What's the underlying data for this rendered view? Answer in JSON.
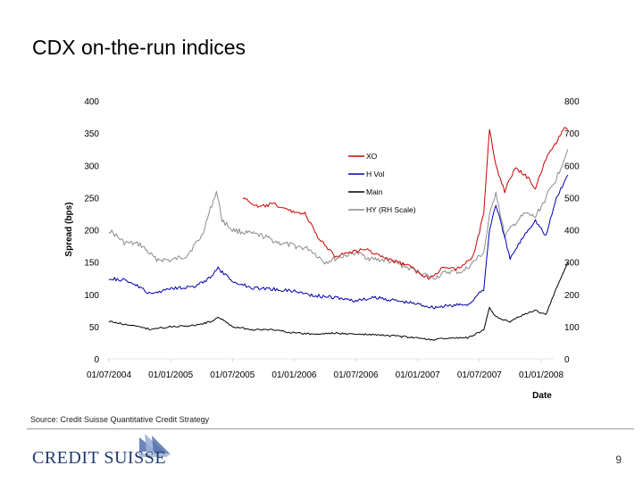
{
  "slide": {
    "title": "CDX on-the-run indices",
    "source": "Source: Credit Suisse Quantitative Credit Strategy",
    "page_number": "9",
    "logo_text": "CREDIT SUISSE"
  },
  "colors": {
    "xo": "#cc0000",
    "hvol": "#0000b0",
    "main": "#000000",
    "hy": "#8c8c8c",
    "logo": "#1f3a6e"
  },
  "chart_data": {
    "type": "line",
    "xlabel": "Date",
    "ylabel": "Spread (bps)",
    "x_ticks": [
      "01/07/2004",
      "01/01/2005",
      "01/07/2005",
      "01/01/2006",
      "01/07/2006",
      "01/01/2007",
      "01/07/2007",
      "01/01/2008"
    ],
    "ylim": [
      0,
      400
    ],
    "y2lim": [
      0,
      800
    ],
    "y_ticks": [
      "0",
      "50",
      "100",
      "150",
      "200",
      "250",
      "300",
      "350",
      "400"
    ],
    "y2_ticks": [
      "0",
      "100",
      "200",
      "300",
      "400",
      "500",
      "600",
      "700",
      "800"
    ],
    "legend_position": "center-right",
    "series": [
      {
        "name": "XO",
        "axis": "left",
        "color": "#cc0000",
        "x": [
          "2005-08-01",
          "2005-09-15",
          "2005-11-01",
          "2005-12-15",
          "2006-02-01",
          "2006-03-15",
          "2006-05-01",
          "2006-06-15",
          "2006-08-01",
          "2006-10-01",
          "2006-12-01",
          "2007-02-01",
          "2007-03-15",
          "2007-05-01",
          "2007-06-15",
          "2007-07-15",
          "2007-08-01",
          "2007-08-20",
          "2007-09-15",
          "2007-10-15",
          "2007-11-15",
          "2007-12-15",
          "2008-01-15",
          "2008-02-15",
          "2008-03-10",
          "2008-03-20"
        ],
        "y": [
          250,
          235,
          240,
          230,
          225,
          185,
          160,
          165,
          170,
          155,
          145,
          125,
          140,
          140,
          160,
          225,
          355,
          300,
          260,
          295,
          285,
          265,
          310,
          335,
          360,
          355
        ]
      },
      {
        "name": "H Vol",
        "axis": "left",
        "color": "#0000b0",
        "x": [
          "2004-07-01",
          "2004-09-01",
          "2004-11-01",
          "2005-01-01",
          "2005-03-15",
          "2005-05-01",
          "2005-05-20",
          "2005-07-01",
          "2005-09-01",
          "2005-11-01",
          "2006-01-01",
          "2006-03-01",
          "2006-05-01",
          "2006-07-01",
          "2006-09-01",
          "2006-11-01",
          "2007-01-01",
          "2007-02-15",
          "2007-04-01",
          "2007-06-01",
          "2007-07-15",
          "2007-08-01",
          "2007-08-20",
          "2007-10-01",
          "2007-11-15",
          "2007-12-15",
          "2008-01-15",
          "2008-02-15",
          "2008-03-20"
        ],
        "y": [
          125,
          120,
          100,
          110,
          112,
          128,
          140,
          120,
          110,
          108,
          105,
          98,
          95,
          90,
          95,
          90,
          85,
          80,
          82,
          85,
          108,
          200,
          240,
          155,
          195,
          215,
          190,
          250,
          285
        ]
      },
      {
        "name": "Main",
        "axis": "left",
        "color": "#000000",
        "x": [
          "2004-07-01",
          "2004-09-01",
          "2004-11-01",
          "2005-01-01",
          "2005-03-15",
          "2005-05-01",
          "2005-05-20",
          "2005-07-01",
          "2005-09-01",
          "2005-11-01",
          "2006-01-01",
          "2006-03-01",
          "2006-05-01",
          "2006-07-01",
          "2006-09-01",
          "2006-11-01",
          "2007-01-01",
          "2007-02-15",
          "2007-04-01",
          "2007-06-01",
          "2007-07-15",
          "2007-08-01",
          "2007-08-20",
          "2007-10-01",
          "2007-11-15",
          "2007-12-15",
          "2008-01-15",
          "2008-02-15",
          "2008-03-20"
        ],
        "y": [
          58,
          52,
          46,
          50,
          52,
          58,
          65,
          50,
          45,
          45,
          40,
          38,
          40,
          38,
          37,
          35,
          32,
          30,
          32,
          33,
          45,
          80,
          65,
          58,
          70,
          75,
          68,
          110,
          150
        ]
      },
      {
        "name": "HY (RH Scale)",
        "axis": "right",
        "color": "#8c8c8c",
        "x": [
          "2004-07-01",
          "2004-08-15",
          "2004-10-01",
          "2004-11-15",
          "2005-01-01",
          "2005-02-15",
          "2005-04-01",
          "2005-05-15",
          "2005-06-01",
          "2005-07-01",
          "2005-08-15",
          "2005-10-01",
          "2005-11-15",
          "2006-01-01",
          "2006-02-15",
          "2006-04-01",
          "2006-05-15",
          "2006-07-01",
          "2006-08-15",
          "2006-10-01",
          "2006-11-15",
          "2007-01-01",
          "2007-02-15",
          "2007-04-01",
          "2007-05-15",
          "2007-06-15",
          "2007-07-15",
          "2007-08-01",
          "2007-08-20",
          "2007-09-15",
          "2007-10-15",
          "2007-11-15",
          "2007-12-15",
          "2008-01-15",
          "2008-02-15",
          "2008-03-20"
        ],
        "y": [
          400,
          360,
          355,
          310,
          305,
          320,
          380,
          520,
          430,
          400,
          390,
          380,
          360,
          350,
          340,
          300,
          315,
          330,
          310,
          305,
          290,
          270,
          250,
          270,
          270,
          300,
          330,
          440,
          520,
          380,
          420,
          450,
          440,
          500,
          560,
          650
        ]
      }
    ]
  }
}
